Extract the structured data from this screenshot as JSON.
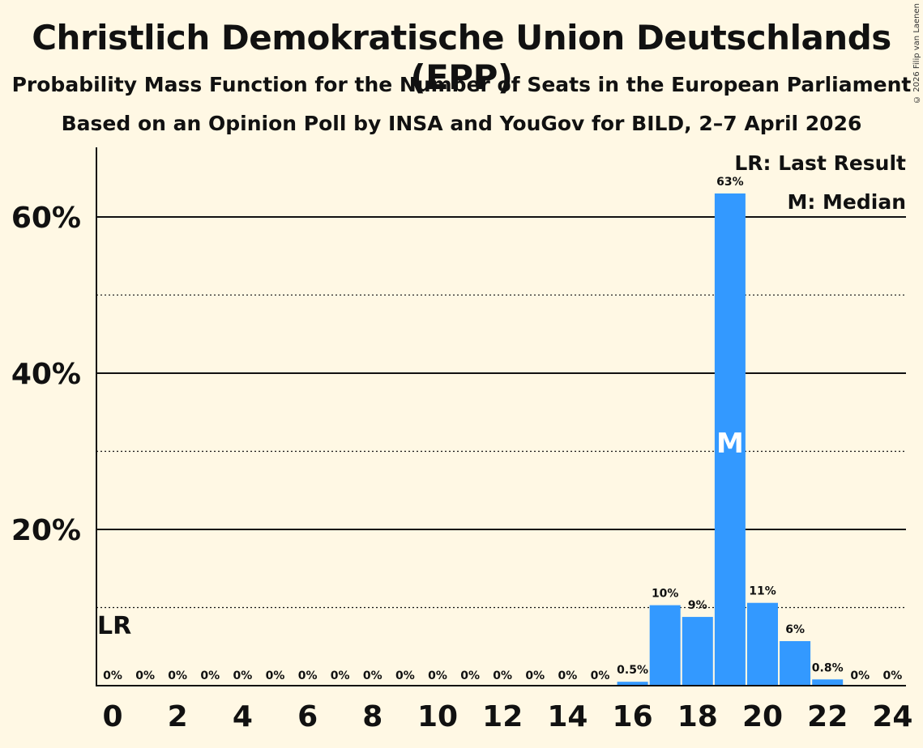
{
  "title": "Christlich Demokratische Union Deutschlands (EPP)",
  "subtitle": "Probability Mass Function for the Number of Seats in the European Parliament",
  "subtitle2": "Based on an Opinion Poll by INSA and YouGov for BILD, 2–7 April 2026",
  "copyright": "© 2026 Filip van Laenen",
  "legend": {
    "lr": "LR: Last Result",
    "m": "M: Median"
  },
  "chart_data": {
    "type": "bar",
    "categories": [
      0,
      1,
      2,
      3,
      4,
      5,
      6,
      7,
      8,
      9,
      10,
      11,
      12,
      13,
      14,
      15,
      16,
      17,
      18,
      19,
      20,
      21,
      22,
      23,
      24
    ],
    "values": [
      0,
      0,
      0,
      0,
      0,
      0,
      0,
      0,
      0,
      0,
      0,
      0,
      0,
      0,
      0,
      0,
      0.5,
      10.3,
      8.8,
      63,
      10.6,
      5.7,
      0.8,
      0,
      0
    ],
    "labels": [
      "0%",
      "0%",
      "0%",
      "0%",
      "0%",
      "0%",
      "0%",
      "0%",
      "0%",
      "0%",
      "0%",
      "0%",
      "0%",
      "0%",
      "0%",
      "0%",
      "0.5%",
      "10%",
      "9%",
      "63%",
      "11%",
      "6%",
      "0.8%",
      "0%",
      "0%"
    ],
    "xticks": [
      0,
      2,
      4,
      6,
      8,
      10,
      12,
      14,
      16,
      18,
      20,
      22,
      24
    ],
    "yticks": [
      20,
      40,
      60
    ],
    "ytick_labels": [
      "20%",
      "40%",
      "60%"
    ],
    "dotted_gridlines": [
      10,
      30,
      50
    ],
    "ylim": [
      0,
      69
    ],
    "last_result_seat": 0,
    "last_result_label": "LR",
    "median_seat": 19,
    "median_label": "M",
    "bar_color": "#3399FF"
  }
}
